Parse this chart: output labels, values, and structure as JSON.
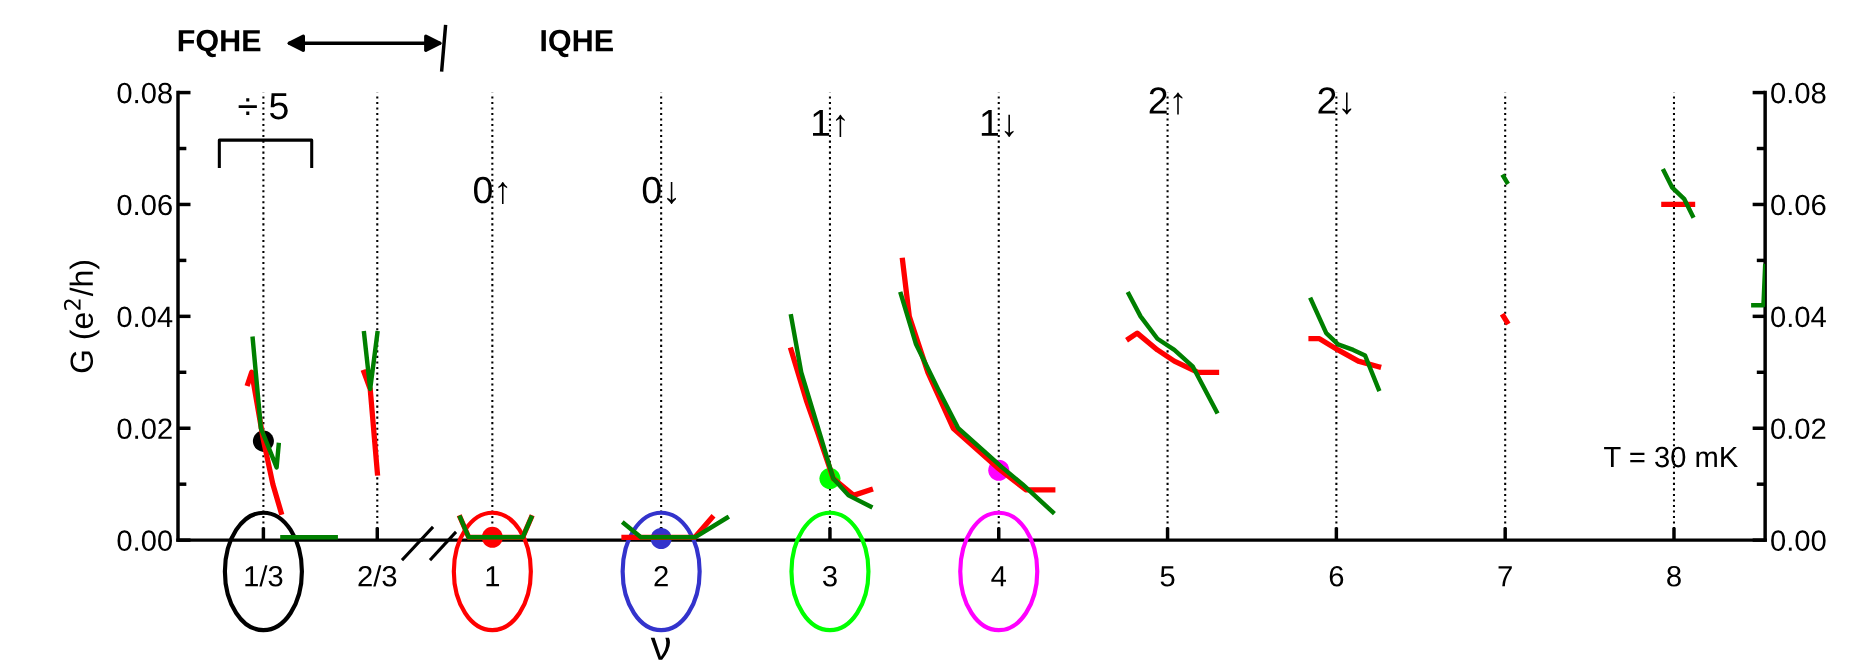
{
  "chart_data": [
    {
      "type": "line",
      "ylabel": "G (e$^{2}$/h)",
      "xlim": [
        0.0833,
        0.795
      ],
      "xticks": [
        {
          "value": 0.3333,
          "label": "1/3"
        },
        {
          "value": 0.6667,
          "label": "2/3"
        }
      ],
      "ylim": [
        0,
        0.08
      ],
      "yticks": [
        {
          "value": 0,
          "label": "0.00"
        },
        {
          "value": 0.01,
          "label": null
        },
        {
          "value": 0.02,
          "label": "0.02"
        },
        {
          "value": 0.03,
          "label": null
        },
        {
          "value": 0.04,
          "label": "0.04"
        },
        {
          "value": 0.05,
          "label": null
        },
        {
          "value": 0.06,
          "label": "0.06"
        },
        {
          "value": 0.07,
          "label": null
        },
        {
          "value": 0.08,
          "label": "0.08"
        }
      ],
      "line_style": "solid",
      "series": [
        {
          "color": "#ff0000",
          "x": [
            0.288,
            0.299,
            0.333,
            0.361,
            0.385,
            null,
            0.628,
            0.646,
            0.667
          ],
          "values": [
            0.028,
            0.03,
            0.018,
            0.01,
            0.005,
            null,
            0.03,
            0.027,
            0.012
          ]
        },
        {
          "color": "#007f00",
          "x": [
            0.302,
            0.326,
            0.372,
            0.378,
            null,
            0.389,
            0.545,
            null,
            0.628,
            0.646,
            0.667
          ],
          "values": [
            0.036,
            0.02,
            0.013,
            0.017,
            null,
            0.0005,
            0.0005,
            null,
            0.037,
            0.027,
            0.037
          ]
        },
        {
          "type": "scatter",
          "marker": "circle",
          "x": [
            0.3333
          ],
          "values": [
            0.0177
          ],
          "colors": [
            "#000000"
          ]
        }
      ],
      "ref_lines": [
        {
          "axis": "x",
          "value": 0.3333,
          "line_style": "dotted",
          "color": "#000000"
        },
        {
          "axis": "x",
          "value": 0.6667,
          "line_style": "dotted",
          "color": "#000000"
        }
      ],
      "annotations": [
        "FQHE",
        {
          "text": "÷ 5",
          "x": 0.3333,
          "y": 0.077
        }
      ]
    },
    {
      "type": "line",
      "xlabel": "ν",
      "xlim": [
        0.578,
        8.54
      ],
      "xticks": [
        1,
        2,
        3,
        4,
        5,
        6,
        7,
        8
      ],
      "ylim": [
        0,
        0.08
      ],
      "yticks": [
        {
          "value": 0,
          "label": "0.00"
        },
        {
          "value": 0.01,
          "label": null
        },
        {
          "value": 0.02,
          "label": "0.02"
        },
        {
          "value": 0.03,
          "label": null
        },
        {
          "value": 0.04,
          "label": "0.04"
        },
        {
          "value": 0.05,
          "label": null
        },
        {
          "value": 0.06,
          "label": "0.06"
        },
        {
          "value": 0.07,
          "label": null
        },
        {
          "value": 0.08,
          "label": "0.08"
        }
      ],
      "line_style": "solid",
      "series": [
        {
          "color": "#ff0000",
          "x": [
            0.81,
            0.86,
            1.18,
            1.23,
            null,
            1.78,
            1.88,
            2.2,
            2.3,
            null,
            2.77,
            2.86,
            2.93,
            3.02,
            3.14,
            3.24,
            null,
            3.43,
            3.47,
            3.58,
            3.73,
            3.99,
            4.16,
            4.32,
            null,
            4.77,
            4.82,
            4.94,
            5.04,
            5.18,
            5.29,
            null,
            5.85,
            5.9,
            6.01,
            6.13,
            6.25,
            null,
            6.99,
            7.01,
            null,
            7.94,
            7.99,
            8.11
          ],
          "values": [
            0.004,
            0.0005,
            0.0005,
            0.004,
            null,
            0.0005,
            0.0005,
            0.0005,
            0.004,
            null,
            0.034,
            0.025,
            0.019,
            0.011,
            0.008,
            0.009,
            null,
            0.05,
            0.04,
            0.03,
            0.02,
            0.013,
            0.009,
            0.009,
            null,
            0.036,
            0.037,
            0.034,
            0.032,
            0.03,
            0.03,
            null,
            0.036,
            0.036,
            0.034,
            0.032,
            0.031,
            null,
            0.04,
            0.039,
            null,
            0.06,
            0.06,
            0.06
          ]
        },
        {
          "color": "#007f00",
          "x": [
            0.81,
            0.86,
            1.18,
            1.23,
            null,
            1.78,
            1.88,
            2.2,
            2.39,
            null,
            2.77,
            2.83,
            2.9,
            2.95,
            2.99,
            3.02,
            3.11,
            3.24,
            null,
            3.42,
            3.51,
            3.64,
            3.76,
            4.02,
            4.14,
            4.32,
            null,
            4.77,
            4.84,
            4.94,
            5.04,
            5.15,
            5.29,
            null,
            5.85,
            5.94,
            6.01,
            6.1,
            6.17,
            6.25,
            null,
            6.99,
            7.01,
            null,
            7.94,
            7.99,
            8.06,
            8.11,
            null,
            8.47,
            8.53,
            8.54
          ],
          "values": [
            0.004,
            0.0005,
            0.0005,
            0.004,
            null,
            0.003,
            0.0005,
            0.0005,
            0.004,
            null,
            0.04,
            0.03,
            0.023,
            0.018,
            0.014,
            0.011,
            0.008,
            0.006,
            null,
            0.044,
            0.035,
            0.027,
            0.02,
            0.013,
            0.01,
            0.005,
            null,
            0.044,
            0.04,
            0.036,
            0.034,
            0.031,
            0.023,
            null,
            0.043,
            0.037,
            0.035,
            0.034,
            0.033,
            0.027,
            null,
            0.065,
            0.064,
            null,
            0.066,
            0.063,
            0.061,
            0.058,
            null,
            0.042,
            0.042,
            0.049
          ]
        },
        {
          "type": "scatter",
          "marker": "circle",
          "x": [
            1,
            2,
            3,
            4
          ],
          "values": [
            0.0005,
            0.0003,
            0.011,
            0.0125
          ],
          "colors": [
            "#ff0000",
            "#3333cc",
            "#00ff00",
            "#ff00ff"
          ]
        }
      ],
      "ref_lines": [
        {
          "axis": "x",
          "value": 1,
          "line_style": "dotted",
          "color": "#000000"
        },
        {
          "axis": "x",
          "value": 2,
          "line_style": "dotted",
          "color": "#000000"
        },
        {
          "axis": "x",
          "value": 3,
          "line_style": "dotted",
          "color": "#000000"
        },
        {
          "axis": "x",
          "value": 4,
          "line_style": "dotted",
          "color": "#000000"
        },
        {
          "axis": "x",
          "value": 5,
          "line_style": "dotted",
          "color": "#000000"
        },
        {
          "axis": "x",
          "value": 6,
          "line_style": "dotted",
          "color": "#000000"
        },
        {
          "axis": "x",
          "value": 7,
          "line_style": "dotted",
          "color": "#000000"
        },
        {
          "axis": "x",
          "value": 8,
          "line_style": "dotted",
          "color": "#000000"
        }
      ],
      "annotations": [
        "IQHE",
        "T = 30 mK",
        {
          "text": "0↑",
          "x": 1,
          "y": 0.062
        },
        {
          "text": "0↓",
          "x": 2,
          "y": 0.062
        },
        {
          "text": "1↑",
          "x": 3,
          "y": 0.074
        },
        {
          "text": "1↓",
          "x": 4,
          "y": 0.074
        },
        {
          "text": "2↑",
          "x": 5,
          "y": 0.078
        },
        {
          "text": "2↓",
          "x": 6,
          "y": 0.078
        }
      ]
    }
  ]
}
